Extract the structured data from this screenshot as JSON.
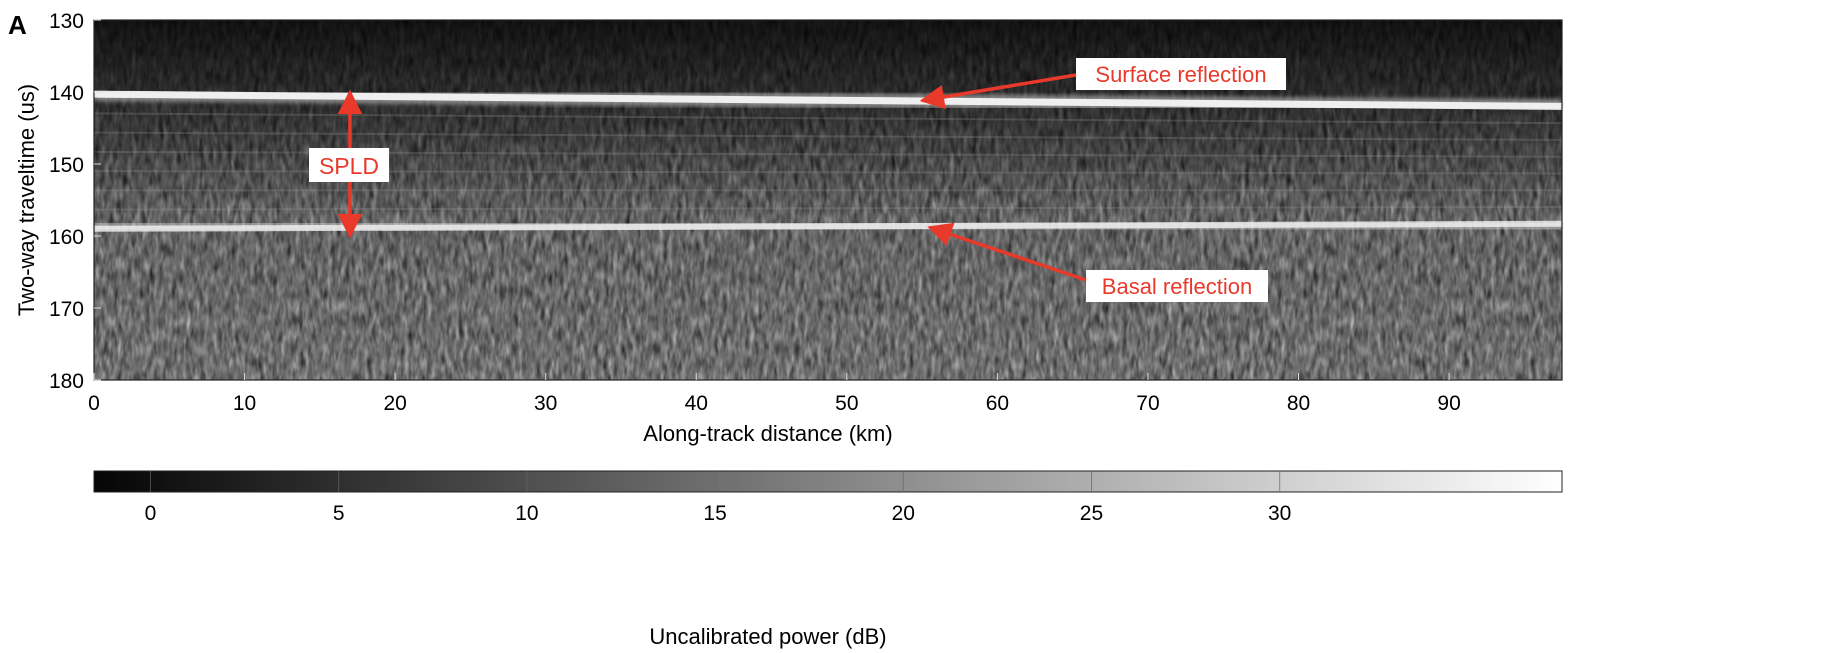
{
  "panel_label": "A",
  "chart_data": [
    {
      "type": "heatmap",
      "title": "",
      "xlabel": "Along-track distance (km)",
      "ylabel": "Two-way traveltime (us)",
      "xlim": [
        0,
        97.5
      ],
      "ylim": [
        180,
        130
      ],
      "y_inverted": true,
      "x_ticks": [
        0,
        10,
        20,
        30,
        40,
        50,
        60,
        70,
        80,
        90
      ],
      "y_ticks": [
        130,
        140,
        150,
        160,
        170,
        180
      ],
      "colormap": "grayscale",
      "grid": false,
      "layers": [
        {
          "name": "Surface reflection",
          "x": [
            0,
            97.5
          ],
          "y": [
            140.3,
            142.0
          ]
        },
        {
          "name": "Basal reflection",
          "x": [
            0,
            97.5
          ],
          "y": [
            159.0,
            158.3
          ]
        }
      ],
      "annotations": [
        {
          "text": "Surface reflection",
          "points_to": {
            "x": 55,
            "y": 141.2
          }
        },
        {
          "text": "Basal reflection",
          "points_to": {
            "x": 55.5,
            "y": 158.8
          }
        },
        {
          "text": "SPLD",
          "from": {
            "x": 17,
            "y": 140
          },
          "to": {
            "x": 17,
            "y": 160
          }
        }
      ]
    },
    {
      "type": "colorbar",
      "label": "Uncalibrated power (dB)",
      "range": [
        -1.5,
        37.5
      ],
      "ticks": [
        0,
        5,
        10,
        15,
        20,
        25,
        30
      ],
      "colormap": "grayscale"
    }
  ],
  "colors": {
    "annotation": "#e8392b",
    "background": "#ffffff",
    "radar_dark": "#111111"
  }
}
